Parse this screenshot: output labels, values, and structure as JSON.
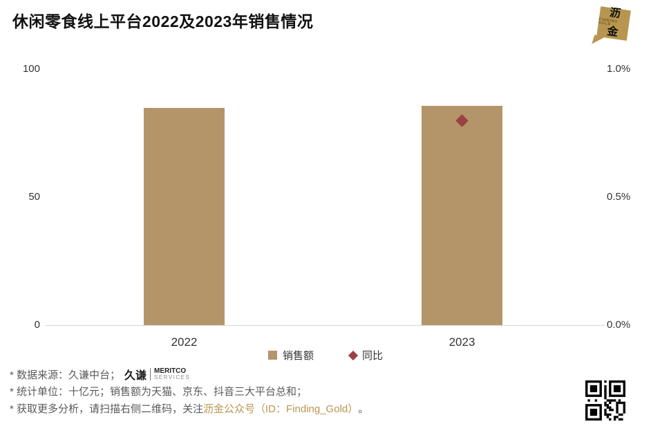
{
  "header": {
    "title": "休闲零食线上平台2022及2023年销售情况",
    "logo_line1": "沥",
    "logo_line2": "金",
    "logo_subtext": "FINDING GOLD"
  },
  "chart_data": {
    "type": "bar",
    "categories": [
      "2022",
      "2023"
    ],
    "series": [
      {
        "name": "销售额",
        "type": "bar",
        "axis": "left",
        "values": [
          85,
          85.7
        ]
      },
      {
        "name": "同比",
        "type": "scatter",
        "axis": "right",
        "values": [
          null,
          0.8
        ]
      }
    ],
    "left_axis": {
      "ticks": [
        "100",
        "50",
        "0"
      ],
      "min": 0,
      "max": 100
    },
    "right_axis": {
      "ticks": [
        "1.0%",
        "0.5%",
        "0.0%"
      ],
      "min": 0,
      "max": 1.0
    },
    "legend": [
      {
        "label": "销售额",
        "marker": "square"
      },
      {
        "label": "同比",
        "marker": "diamond"
      }
    ],
    "grid": false,
    "legend_position": "bottom"
  },
  "footer": {
    "line1_prefix": "* 数据来源：久谦中台；",
    "meritco_cn": "久谦",
    "meritco_en1": "MERITCO",
    "meritco_en2": "SERVICES",
    "line2": "* 统计单位：十亿元；销售额为天猫、京东、抖音三大平台总和；",
    "line3_prefix": "* 获取更多分析，请扫描右侧二维码，关注",
    "line3_highlight": "沥金公众号（ID：Finding_Gold）",
    "line3_suffix": "。"
  },
  "colors": {
    "bar": "#B49469",
    "diamond": "#9C4043",
    "gold": "#B8964F"
  }
}
